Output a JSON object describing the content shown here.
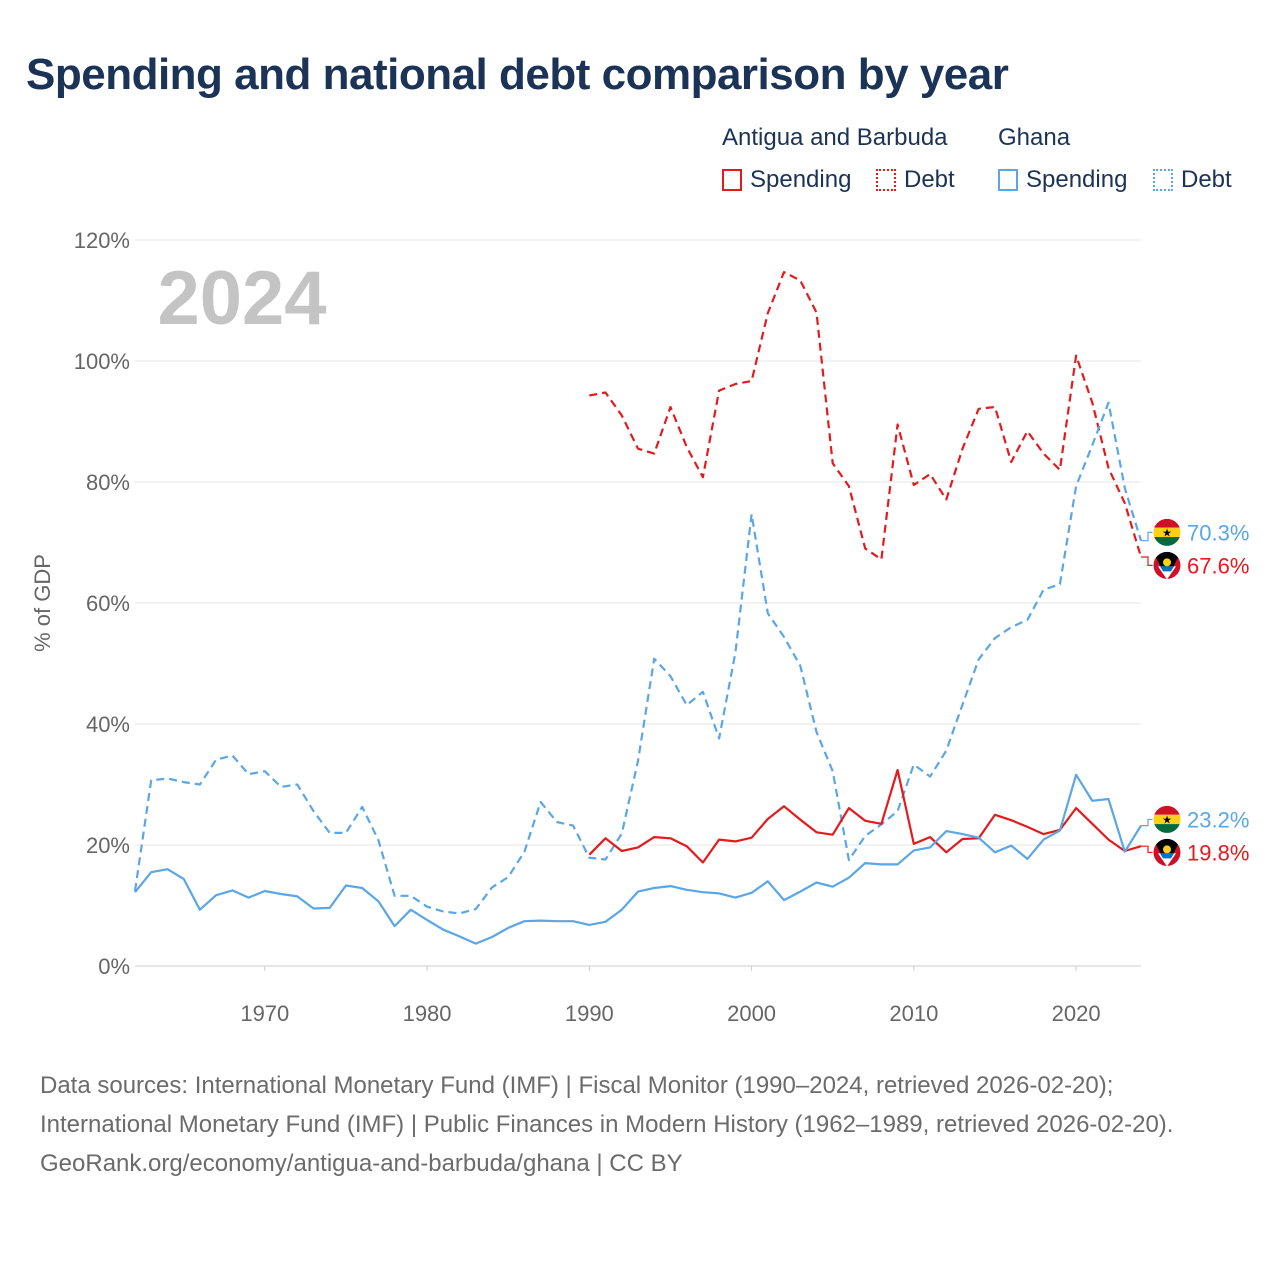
{
  "title": "Spending and national debt comparison by year",
  "legend": {
    "groups": [
      {
        "name": "Antigua and Barbuda",
        "color": "#e41a1c",
        "items": [
          {
            "label": "Spending",
            "style": "solid"
          },
          {
            "label": "Debt",
            "style": "dotted"
          }
        ]
      },
      {
        "name": "Ghana",
        "color": "#5aa6e6",
        "items": [
          {
            "label": "Spending",
            "style": "solid"
          },
          {
            "label": "Debt",
            "style": "dotted"
          }
        ]
      }
    ]
  },
  "footer": {
    "sources": "Data sources: International Monetary Fund (IMF) | Fiscal Monitor (1990–2024, retrieved 2026-02-20); International Monetary Fund (IMF) | Public Finances in Modern History (1962–1989, retrieved 2026-02-20).",
    "credit": "GeoRank.org/economy/antigua-and-barbuda/ghana | CC BY"
  },
  "chart_data": {
    "type": "line",
    "title": "Spending and national debt comparison by year",
    "year_label": "2024",
    "ylabel": "% of GDP",
    "xlabel": "",
    "xlim": [
      1962,
      2024
    ],
    "ylim": [
      0,
      120
    ],
    "x_ticks": [
      1970,
      1980,
      1990,
      2000,
      2010,
      2020
    ],
    "y_ticks": [
      0,
      20,
      40,
      60,
      80,
      100,
      120
    ],
    "y_tick_labels": [
      "0%",
      "20%",
      "40%",
      "60%",
      "80%",
      "100%",
      "120%"
    ],
    "grid": "horizontal",
    "series": [
      {
        "name": "Antigua and Barbuda Debt",
        "country": "Antigua and Barbuda",
        "measure": "Debt",
        "color": "#e41a1c",
        "dash": "dashed",
        "end_label": "67.6%",
        "end_value": 67.6,
        "x": [
          1990,
          1991,
          1992,
          1993,
          1994,
          1995,
          1996,
          1997,
          1998,
          1999,
          2000,
          2001,
          2002,
          2003,
          2004,
          2005,
          2006,
          2007,
          2008,
          2009,
          2010,
          2011,
          2012,
          2013,
          2014,
          2015,
          2016,
          2017,
          2018,
          2019,
          2020,
          2021,
          2022,
          2023,
          2024
        ],
        "y": [
          94.3,
          94.8,
          91.0,
          85.5,
          84.7,
          92.4,
          85.8,
          80.8,
          95.1,
          96.2,
          96.7,
          107.9,
          114.7,
          113.3,
          108.0,
          83.1,
          79.3,
          69.0,
          67.2,
          89.5,
          79.5,
          81.3,
          77.1,
          85.5,
          92.1,
          92.4,
          83.3,
          88.4,
          84.7,
          82.0,
          100.9,
          93.1,
          82.3,
          76.5,
          67.6
        ]
      },
      {
        "name": "Ghana Debt",
        "country": "Ghana",
        "measure": "Debt",
        "color": "#5aa6e6",
        "dash": "dashed",
        "end_label": "70.3%",
        "end_value": 70.3,
        "x": [
          1962,
          1963,
          1964,
          1965,
          1966,
          1967,
          1968,
          1969,
          1970,
          1971,
          1972,
          1973,
          1974,
          1975,
          1976,
          1977,
          1978,
          1979,
          1980,
          1981,
          1982,
          1983,
          1984,
          1985,
          1986,
          1987,
          1988,
          1989,
          1990,
          1991,
          1992,
          1993,
          1994,
          1995,
          1996,
          1997,
          1998,
          1999,
          2000,
          2001,
          2002,
          2003,
          2004,
          2005,
          2006,
          2007,
          2008,
          2009,
          2010,
          2011,
          2012,
          2013,
          2014,
          2015,
          2016,
          2017,
          2018,
          2019,
          2020,
          2021,
          2022,
          2023,
          2024
        ],
        "y": [
          12.4,
          30.7,
          31.0,
          30.4,
          30.0,
          34.1,
          34.8,
          31.7,
          32.2,
          29.6,
          30.0,
          25.6,
          22.0,
          22.0,
          26.3,
          20.8,
          11.6,
          11.6,
          9.8,
          9.0,
          8.7,
          9.4,
          13.0,
          14.7,
          18.9,
          27.1,
          23.8,
          23.2,
          17.9,
          17.6,
          21.9,
          33.9,
          50.8,
          47.9,
          43.1,
          45.3,
          37.6,
          51.8,
          74.7,
          58.3,
          54.4,
          49.6,
          38.7,
          32.2,
          17.5,
          21.5,
          23.4,
          25.6,
          33.3,
          31.3,
          35.6,
          43.2,
          50.7,
          54.2,
          56.0,
          57.2,
          62.2,
          63.1,
          79.3,
          86.1,
          93.1,
          79.0,
          70.3
        ]
      },
      {
        "name": "Antigua and Barbuda Spending",
        "country": "Antigua and Barbuda",
        "measure": "Spending",
        "color": "#e41a1c",
        "dash": "solid",
        "end_label": "19.8%",
        "end_value": 19.8,
        "x": [
          1990,
          1991,
          1992,
          1993,
          1994,
          1995,
          1996,
          1997,
          1998,
          1999,
          2000,
          2001,
          2002,
          2003,
          2004,
          2005,
          2006,
          2007,
          2008,
          2009,
          2010,
          2011,
          2012,
          2013,
          2014,
          2015,
          2016,
          2017,
          2018,
          2019,
          2020,
          2021,
          2022,
          2023,
          2024
        ],
        "y": [
          18.4,
          21.1,
          19.0,
          19.6,
          21.3,
          21.1,
          19.8,
          17.1,
          20.9,
          20.6,
          21.2,
          24.3,
          26.4,
          24.2,
          22.1,
          21.7,
          26.1,
          24.0,
          23.5,
          32.4,
          20.2,
          21.3,
          18.8,
          21.0,
          21.1,
          25.0,
          24.1,
          23.0,
          21.8,
          22.5,
          26.1,
          23.5,
          20.9,
          19.0,
          19.8
        ]
      },
      {
        "name": "Ghana Spending",
        "country": "Ghana",
        "measure": "Spending",
        "color": "#5aa6e6",
        "dash": "solid",
        "end_label": "23.2%",
        "end_value": 23.2,
        "x": [
          1962,
          1963,
          1964,
          1965,
          1966,
          1967,
          1968,
          1969,
          1970,
          1971,
          1972,
          1973,
          1974,
          1975,
          1976,
          1977,
          1978,
          1979,
          1980,
          1981,
          1982,
          1983,
          1984,
          1985,
          1986,
          1987,
          1988,
          1989,
          1990,
          1991,
          1992,
          1993,
          1994,
          1995,
          1996,
          1997,
          1998,
          1999,
          2000,
          2001,
          2002,
          2003,
          2004,
          2005,
          2006,
          2007,
          2008,
          2009,
          2010,
          2011,
          2012,
          2013,
          2014,
          2015,
          2016,
          2017,
          2018,
          2019,
          2020,
          2021,
          2022,
          2023,
          2024
        ],
        "y": [
          12.2,
          15.5,
          16.0,
          14.4,
          9.3,
          11.7,
          12.5,
          11.3,
          12.4,
          11.9,
          11.5,
          9.5,
          9.6,
          13.3,
          12.9,
          10.7,
          6.6,
          9.3,
          7.6,
          6.0,
          4.9,
          3.7,
          4.8,
          6.3,
          7.4,
          7.5,
          7.4,
          7.4,
          6.8,
          7.3,
          9.3,
          12.3,
          12.9,
          13.2,
          12.6,
          12.2,
          12.0,
          11.3,
          12.1,
          14.0,
          10.9,
          12.3,
          13.8,
          13.1,
          14.6,
          17.0,
          16.8,
          16.8,
          19.1,
          19.6,
          22.3,
          21.8,
          21.2,
          18.8,
          19.9,
          17.7,
          20.9,
          22.4,
          31.6,
          27.3,
          27.6,
          18.9,
          23.2
        ]
      }
    ]
  }
}
